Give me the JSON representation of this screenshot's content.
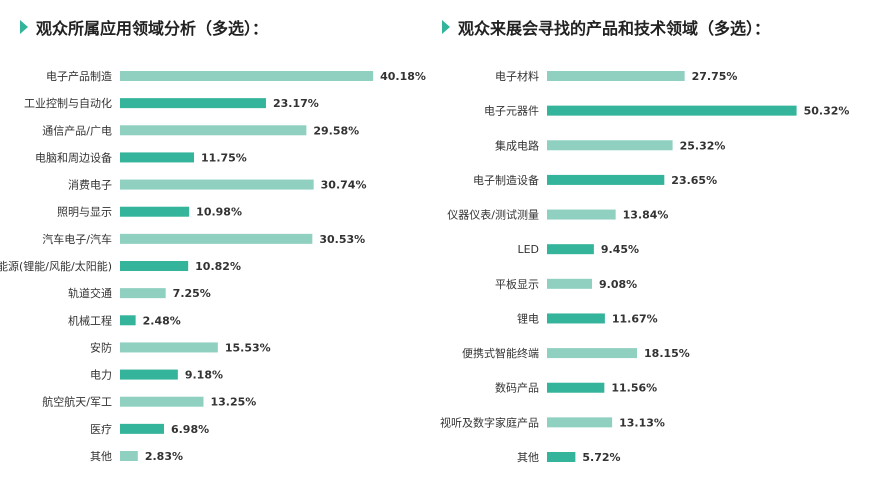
{
  "colors": {
    "dark": "#34b49a",
    "light": "#8fd0c0",
    "accent": "#34b49a"
  },
  "left": {
    "title": "观众所属应用领域分析（多选）：",
    "chart_data": {
      "type": "bar",
      "orientation": "horizontal",
      "title": "观众所属应用领域分析（多选）：",
      "categories": [
        "电子产品制造",
        "工业控制与自动化",
        "通信产品/广电",
        "电脑和周边设备",
        "消费电子",
        "照明与显示",
        "汽车电子/汽车",
        "新能源(锂能/风能/太阳能)",
        "轨道交通",
        "机械工程",
        "安防",
        "电力",
        "航空航天/军工",
        "医疗",
        "其他"
      ],
      "values": [
        40.18,
        23.17,
        29.58,
        11.75,
        30.74,
        10.98,
        30.53,
        10.82,
        7.25,
        2.48,
        15.53,
        9.18,
        13.25,
        6.98,
        2.83
      ],
      "labels": [
        "40.18%",
        "23.17%",
        "29.58%",
        "11.75%",
        "30.74%",
        "10.98%",
        "30.53%",
        "10.82%",
        "7.25%",
        "2.48%",
        "15.53%",
        "9.18%",
        "13.25%",
        "6.98%",
        "2.83%"
      ]
    }
  },
  "right": {
    "title": "观众来展会寻找的产品和技术领域（多选）：",
    "chart_data": {
      "type": "bar",
      "orientation": "horizontal",
      "title": "观众来展会寻找的产品和技术领域（多选）：",
      "categories": [
        "电子材料",
        "电子元器件",
        "集成电路",
        "电子制造设备",
        "仪器仪表/测试测量",
        "LED",
        "平板显示",
        "锂电",
        "便携式智能终端",
        "数码产品",
        "视听及数字家庭产品",
        "其他"
      ],
      "values": [
        27.75,
        50.32,
        25.32,
        23.65,
        13.84,
        9.45,
        9.08,
        11.67,
        18.15,
        11.56,
        13.13,
        5.72
      ],
      "labels": [
        "27.75%",
        "50.32%",
        "25.32%",
        "23.65%",
        "13.84%",
        "9.45%",
        "9.08%",
        "11.67%",
        "18.15%",
        "11.56%",
        "13.13%",
        "5.72%"
      ]
    }
  }
}
